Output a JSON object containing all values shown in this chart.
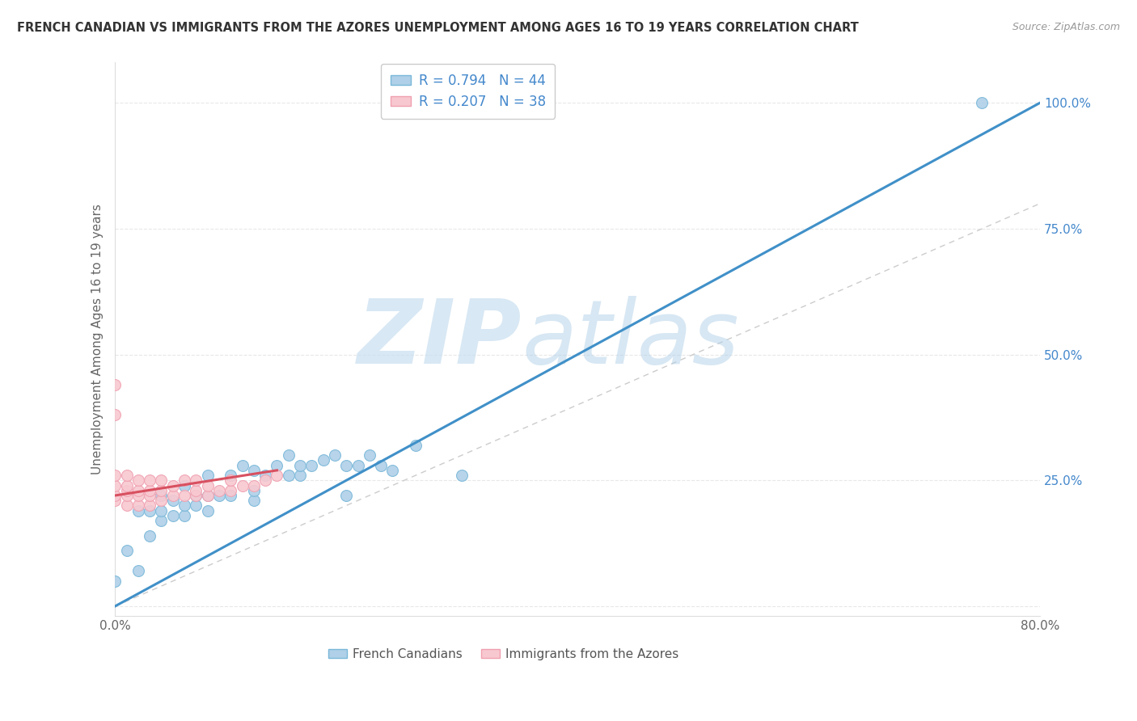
{
  "title": "FRENCH CANADIAN VS IMMIGRANTS FROM THE AZORES UNEMPLOYMENT AMONG AGES 16 TO 19 YEARS CORRELATION CHART",
  "source": "Source: ZipAtlas.com",
  "ylabel": "Unemployment Among Ages 16 to 19 years",
  "xlabel": "",
  "watermark_zip": "ZIP",
  "watermark_atlas": "atlas",
  "xlim": [
    0.0,
    0.8
  ],
  "ylim": [
    -0.02,
    1.08
  ],
  "xticks": [
    0.0,
    0.1,
    0.2,
    0.3,
    0.4,
    0.5,
    0.6,
    0.7,
    0.8
  ],
  "xticklabels": [
    "0.0%",
    "",
    "",
    "",
    "",
    "",
    "",
    "",
    "80.0%"
  ],
  "yticks": [
    0.0,
    0.25,
    0.5,
    0.75,
    1.0
  ],
  "yticklabels": [
    "",
    "25.0%",
    "50.0%",
    "75.0%",
    "100.0%"
  ],
  "legend1_r": "R = 0.794",
  "legend1_n": "N = 44",
  "legend2_r": "R = 0.207",
  "legend2_n": "N = 38",
  "legend_foot1": "French Canadians",
  "legend_foot2": "Immigrants from the Azores",
  "blue_color": "#7ab8d9",
  "blue_fill": "#afd0e8",
  "pink_color": "#f0a0b0",
  "pink_fill": "#f8c8d0",
  "line_blue": "#4090c8",
  "line_pink": "#d85060",
  "line_ref": "#cccccc",
  "blue_scatter_x": [
    0.0,
    0.01,
    0.02,
    0.02,
    0.03,
    0.03,
    0.04,
    0.04,
    0.04,
    0.05,
    0.05,
    0.06,
    0.06,
    0.06,
    0.07,
    0.07,
    0.08,
    0.08,
    0.08,
    0.09,
    0.1,
    0.1,
    0.11,
    0.12,
    0.12,
    0.12,
    0.13,
    0.14,
    0.15,
    0.15,
    0.16,
    0.16,
    0.17,
    0.18,
    0.19,
    0.2,
    0.2,
    0.21,
    0.22,
    0.23,
    0.24,
    0.26,
    0.3,
    0.75
  ],
  "blue_scatter_y": [
    0.05,
    0.11,
    0.07,
    0.19,
    0.14,
    0.19,
    0.17,
    0.19,
    0.22,
    0.18,
    0.21,
    0.18,
    0.2,
    0.24,
    0.2,
    0.22,
    0.19,
    0.22,
    0.26,
    0.22,
    0.22,
    0.26,
    0.28,
    0.21,
    0.23,
    0.27,
    0.26,
    0.28,
    0.26,
    0.3,
    0.26,
    0.28,
    0.28,
    0.29,
    0.3,
    0.22,
    0.28,
    0.28,
    0.3,
    0.28,
    0.27,
    0.32,
    0.26,
    1.0
  ],
  "pink_scatter_x": [
    0.0,
    0.0,
    0.0,
    0.0,
    0.0,
    0.0,
    0.01,
    0.01,
    0.01,
    0.01,
    0.01,
    0.02,
    0.02,
    0.02,
    0.02,
    0.03,
    0.03,
    0.03,
    0.03,
    0.04,
    0.04,
    0.04,
    0.05,
    0.05,
    0.06,
    0.06,
    0.07,
    0.07,
    0.07,
    0.08,
    0.08,
    0.09,
    0.1,
    0.1,
    0.11,
    0.12,
    0.13,
    0.14
  ],
  "pink_scatter_y": [
    0.38,
    0.44,
    0.21,
    0.22,
    0.24,
    0.26,
    0.2,
    0.22,
    0.23,
    0.24,
    0.26,
    0.2,
    0.22,
    0.23,
    0.25,
    0.2,
    0.22,
    0.23,
    0.25,
    0.21,
    0.23,
    0.25,
    0.22,
    0.24,
    0.22,
    0.25,
    0.22,
    0.23,
    0.25,
    0.22,
    0.24,
    0.23,
    0.23,
    0.25,
    0.24,
    0.24,
    0.25,
    0.26
  ],
  "blue_line_x": [
    0.0,
    0.8
  ],
  "blue_line_y": [
    0.0,
    1.0
  ],
  "pink_line_x": [
    0.0,
    0.14
  ],
  "pink_line_y": [
    0.22,
    0.27
  ],
  "ref_line_x": [
    0.0,
    0.8
  ],
  "ref_line_y": [
    0.0,
    0.8
  ],
  "background_color": "#ffffff",
  "grid_color": "#e8e8e8"
}
